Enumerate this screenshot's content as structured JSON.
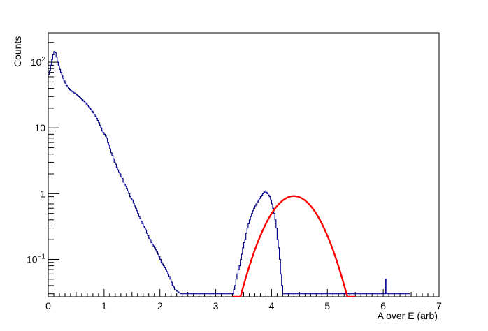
{
  "chart_data": {
    "type": "histogram",
    "title": "",
    "xlabel": "A over E (arb)",
    "ylabel": "Counts",
    "xlim": [
      0,
      7
    ],
    "ylim": [
      0.027,
      280
    ],
    "y_scale": "log",
    "grid": false,
    "legend": "none",
    "x_ticks": [
      "0",
      "1",
      "2",
      "3",
      "4",
      "5",
      "6",
      "7"
    ],
    "y_tick_labels": [
      {
        "base": "10",
        "exp": "−1",
        "value": 0.1
      },
      {
        "base": "1",
        "exp": "",
        "value": 1
      },
      {
        "base": "10",
        "exp": "",
        "value": 10
      },
      {
        "base": "10",
        "exp": "2",
        "value": 100
      }
    ],
    "series": [
      {
        "kind": "step-histogram",
        "color": "#00008b",
        "bin_width": 0.02,
        "x_start": 0.0,
        "values": [
          65,
          75,
          90,
          110,
          130,
          145,
          140,
          120,
          100,
          88,
          78,
          70,
          64,
          57,
          52,
          48,
          44,
          42,
          40,
          38,
          37,
          36,
          35,
          34,
          33,
          32,
          31,
          30,
          29,
          28,
          27,
          26,
          25,
          24,
          23,
          22,
          21,
          20,
          19,
          18,
          17,
          16,
          15,
          14,
          13,
          12,
          11,
          10,
          9,
          8.5,
          8,
          7.5,
          7,
          6,
          5.5,
          4.8,
          4.2,
          3.8,
          3.4,
          3.0,
          2.8,
          2.5,
          2.3,
          2.1,
          2.0,
          1.8,
          1.7,
          1.5,
          1.4,
          1.3,
          1.2,
          1.1,
          1.0,
          0.9,
          0.85,
          0.8,
          0.72,
          0.65,
          0.6,
          0.55,
          0.5,
          0.45,
          0.42,
          0.38,
          0.35,
          0.32,
          0.3,
          0.28,
          0.25,
          0.23,
          0.21,
          0.2,
          0.18,
          0.17,
          0.16,
          0.15,
          0.14,
          0.13,
          0.12,
          0.11,
          0.1,
          0.09,
          0.085,
          0.08,
          0.075,
          0.07,
          0.065,
          0.06,
          0.055,
          0.05,
          0.045,
          0.04,
          0.038,
          0.035,
          0.034,
          0.033,
          0.032,
          0.031,
          0.03,
          0.03,
          0.03,
          0.03,
          0.03,
          0.03,
          0.03,
          0.03,
          0.03,
          0.03,
          0.03,
          0.03,
          0.03,
          0.03,
          0.03,
          0.03,
          0.03,
          0.03,
          0.03,
          0.03,
          0.03,
          0.03,
          0.03,
          0.03,
          0.03,
          0.03,
          0.03,
          0.03,
          0.03,
          0.03,
          0.03,
          0.03,
          0.03,
          0.03,
          0.03,
          0.03,
          0.03,
          0.03,
          0.03,
          0.03,
          0.03,
          0.03,
          0.03,
          0.03,
          0.03,
          0.03,
          0.03,
          0.03,
          0.035,
          0.04,
          0.05,
          0.06,
          0.07,
          0.08,
          0.1,
          0.12,
          0.15,
          0.18,
          0.2,
          0.25,
          0.3,
          0.35,
          0.4,
          0.45,
          0.5,
          0.55,
          0.6,
          0.65,
          0.7,
          0.75,
          0.8,
          0.85,
          0.9,
          0.95,
          1.0,
          1.05,
          1.1,
          1.05,
          1.0,
          0.95,
          0.9,
          0.8,
          0.7,
          0.6,
          0.5,
          0.4,
          0.3,
          0.2,
          0.15,
          0.1,
          0.06,
          0.04,
          0.03,
          0.03,
          0.03,
          0.03,
          0.03,
          0.03,
          0.03,
          0.03,
          0.03,
          0.03,
          0.03,
          0.03,
          0.03,
          0.03,
          0.03,
          0.03,
          0.03,
          0.03,
          0.03,
          0.03,
          0.03,
          0.03,
          0.03,
          0.03,
          0.03,
          0.03,
          0.03,
          0.03,
          0.03,
          0.03,
          0.03,
          0.03,
          0.03,
          0.03,
          0.03,
          0.03,
          0.03,
          0.03,
          0.03,
          0.03,
          0.03,
          0.03,
          0.03,
          0.03,
          0.03,
          0.03,
          0.03,
          0.03,
          0.03,
          0.03,
          0.03,
          0.03,
          0.03,
          0.03,
          0.03,
          0.03,
          0.03,
          0.03,
          0.03,
          0.03,
          0.03,
          0.03,
          0.03,
          0.03,
          0.03,
          0.03,
          0.03,
          0.03,
          0.03,
          0.03,
          0.03,
          0.03,
          0.03,
          0.03,
          0.03,
          0.03,
          0.03,
          0.03,
          0.03,
          0.03,
          0.03,
          0.03,
          0.03,
          0.03,
          0.03,
          0.03,
          0.03,
          0.03,
          0.03,
          0.03,
          0.03,
          0.03,
          0.05,
          0.03,
          0.03,
          0.03,
          0.03,
          0.03,
          0.03,
          0.03,
          0.03,
          0.03,
          0.03,
          0.03,
          0.03,
          0.03,
          0.03,
          0.03,
          0.03,
          0.03,
          0.03,
          0.03,
          0.03,
          0.03
        ]
      },
      {
        "kind": "gaussian-fit",
        "color": "#ff0000",
        "amplitude": 0.92,
        "mean": 4.4,
        "sigma": 0.36,
        "x_range": [
          3.3,
          5.5
        ]
      }
    ]
  }
}
